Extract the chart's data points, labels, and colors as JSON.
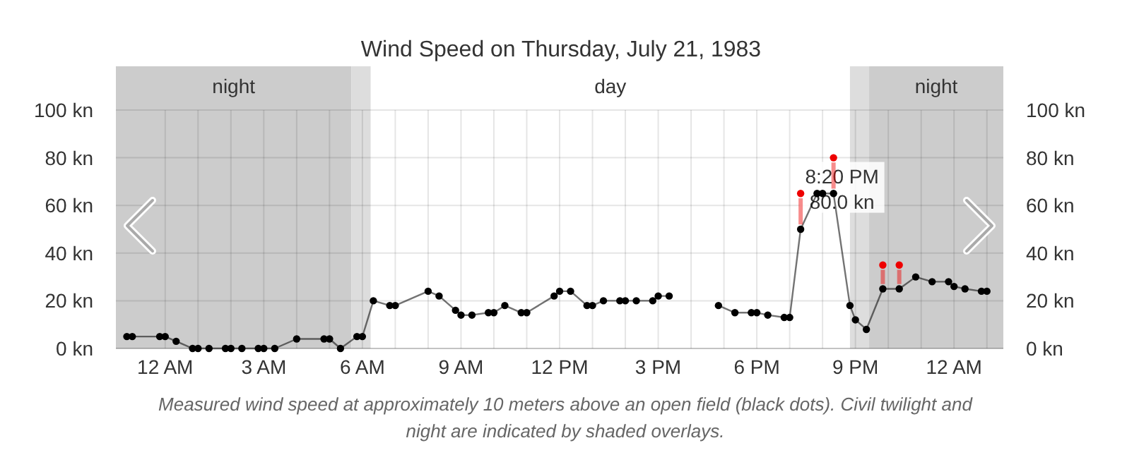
{
  "chart_data": {
    "type": "line",
    "title": "Wind Speed on Thursday, July 21, 1983",
    "xlim": [
      "1983-07-20T22:30",
      "1983-07-22T01:30"
    ],
    "xticks": [
      {
        "value": "1983-07-21T00:00",
        "label": "12 AM"
      },
      {
        "value": "1983-07-21T01:00",
        "label": null
      },
      {
        "value": "1983-07-21T02:00",
        "label": null
      },
      {
        "value": "1983-07-21T03:00",
        "label": "3 AM"
      },
      {
        "value": "1983-07-21T04:00",
        "label": null
      },
      {
        "value": "1983-07-21T05:00",
        "label": null
      },
      {
        "value": "1983-07-21T06:00",
        "label": "6 AM"
      },
      {
        "value": "1983-07-21T07:00",
        "label": null
      },
      {
        "value": "1983-07-21T08:00",
        "label": null
      },
      {
        "value": "1983-07-21T09:00",
        "label": "9 AM"
      },
      {
        "value": "1983-07-21T10:00",
        "label": null
      },
      {
        "value": "1983-07-21T11:00",
        "label": null
      },
      {
        "value": "1983-07-21T12:00",
        "label": "12 PM"
      },
      {
        "value": "1983-07-21T13:00",
        "label": null
      },
      {
        "value": "1983-07-21T14:00",
        "label": null
      },
      {
        "value": "1983-07-21T15:00",
        "label": "3 PM"
      },
      {
        "value": "1983-07-21T16:00",
        "label": null
      },
      {
        "value": "1983-07-21T17:00",
        "label": null
      },
      {
        "value": "1983-07-21T18:00",
        "label": "6 PM"
      },
      {
        "value": "1983-07-21T19:00",
        "label": null
      },
      {
        "value": "1983-07-21T20:00",
        "label": null
      },
      {
        "value": "1983-07-21T21:00",
        "label": "9 PM"
      },
      {
        "value": "1983-07-21T22:00",
        "label": null
      },
      {
        "value": "1983-07-21T23:00",
        "label": null
      },
      {
        "value": "1983-07-22T00:00",
        "label": "12 AM"
      },
      {
        "value": "1983-07-22T01:00",
        "label": null
      }
    ],
    "ylim": [
      0,
      100
    ],
    "yticks": [
      {
        "value": 0,
        "label": "0 kn"
      },
      {
        "value": 20,
        "label": "20 kn"
      },
      {
        "value": 40,
        "label": "40 kn"
      },
      {
        "value": 60,
        "label": "60 kn"
      },
      {
        "value": 80,
        "label": "80 kn"
      },
      {
        "value": 100,
        "label": "100 kn"
      }
    ],
    "y2lim": [
      0,
      100
    ],
    "y2ticks": [
      {
        "value": 0,
        "label": "0 kn"
      },
      {
        "value": 20,
        "label": "20 kn"
      },
      {
        "value": 40,
        "label": "40 kn"
      },
      {
        "value": 60,
        "label": "60 kn"
      },
      {
        "value": 80,
        "label": "80 kn"
      },
      {
        "value": 100,
        "label": "100 kn"
      }
    ],
    "grid": true,
    "marker": "circle",
    "line_style": "solid",
    "bands": [
      {
        "axis": "x",
        "from": "1983-07-20T22:30",
        "to": "1983-07-21T05:40",
        "label": "night",
        "color": "#cccccc"
      },
      {
        "axis": "x",
        "from": "1983-07-21T05:40",
        "to": "1983-07-21T06:15",
        "label": null,
        "color": "#dddddd"
      },
      {
        "axis": "x",
        "from": "1983-07-21T20:50",
        "to": "1983-07-21T21:25",
        "label": null,
        "color": "#dddddd"
      },
      {
        "axis": "x",
        "from": "1983-07-21T21:25",
        "to": "1983-07-22T01:30",
        "label": "night",
        "color": "#cccccc"
      }
    ],
    "series": [
      {
        "color": "#000000",
        "x": [
          "1983-07-20T22:50",
          "1983-07-20T23:00",
          "1983-07-20T23:50",
          "1983-07-21T00:00",
          "1983-07-21T00:20",
          "1983-07-21T00:50",
          "1983-07-21T01:00",
          "1983-07-21T01:20",
          "1983-07-21T01:50",
          "1983-07-21T02:00",
          "1983-07-21T02:20",
          "1983-07-21T02:50",
          "1983-07-21T03:00",
          "1983-07-21T03:20",
          "1983-07-21T04:00",
          "1983-07-21T04:50",
          "1983-07-21T05:00",
          "1983-07-21T05:20",
          "1983-07-21T05:50",
          "1983-07-21T06:00",
          "1983-07-21T06:20",
          "1983-07-21T06:50",
          "1983-07-21T07:00",
          "1983-07-21T08:00",
          "1983-07-21T08:20",
          "1983-07-21T08:50",
          "1983-07-21T09:00",
          "1983-07-21T09:20",
          "1983-07-21T09:50",
          "1983-07-21T10:00",
          "1983-07-21T10:20",
          "1983-07-21T10:50",
          "1983-07-21T11:00",
          "1983-07-21T11:50",
          "1983-07-21T12:00",
          "1983-07-21T12:20",
          "1983-07-21T12:50",
          "1983-07-21T13:00",
          "1983-07-21T13:20",
          "1983-07-21T13:50",
          "1983-07-21T14:00",
          "1983-07-21T14:20",
          "1983-07-21T14:50",
          "1983-07-21T15:00",
          "1983-07-21T15:20",
          "1983-07-21T16:00",
          "1983-07-21T16:50",
          "1983-07-21T17:20",
          "1983-07-21T17:50",
          "1983-07-21T18:00",
          "1983-07-21T18:20",
          "1983-07-21T18:50",
          "1983-07-21T19:00",
          "1983-07-21T19:20",
          "1983-07-21T19:50",
          "1983-07-21T20:00",
          "1983-07-21T20:20",
          "1983-07-21T20:50",
          "1983-07-21T21:00",
          "1983-07-21T21:20",
          "1983-07-21T21:50",
          "1983-07-21T22:20",
          "1983-07-21T22:50",
          "1983-07-21T23:20",
          "1983-07-21T23:50",
          "1983-07-22T00:00",
          "1983-07-22T00:20",
          "1983-07-22T00:50",
          "1983-07-22T01:00"
        ],
        "values": [
          5,
          5,
          5,
          5,
          3,
          0,
          0,
          0,
          0,
          0,
          0,
          0,
          0,
          0,
          4,
          4,
          4,
          0,
          5,
          5,
          20,
          18,
          18,
          24,
          22,
          16,
          14,
          14,
          15,
          15,
          18,
          15,
          15,
          22,
          24,
          24,
          18,
          18,
          20,
          20,
          20,
          20,
          20,
          22,
          22,
          null,
          18,
          15,
          15,
          15,
          14,
          13,
          13,
          50,
          65,
          65,
          65,
          18,
          12,
          8,
          25,
          25,
          30,
          28,
          28,
          26,
          25,
          24,
          24
        ]
      },
      {
        "type": "scatter",
        "color": "#ee0000",
        "x": [
          "1983-07-21T19:20",
          "1983-07-21T20:20",
          "1983-07-21T21:50",
          "1983-07-21T22:20"
        ],
        "values": [
          65,
          80,
          35,
          35
        ],
        "errors": [
          [
            52,
            63
          ],
          [
            67,
            78
          ],
          [
            27,
            33
          ],
          [
            27,
            33
          ]
        ]
      }
    ],
    "annotations": [
      "day",
      {
        "text": "8:20 PM\n80.0 kn",
        "x": "1983-07-21T20:20",
        "y": 80
      },
      "Measured wind speed at approximately 10 meters above an open field (black dots). Civil twilight and\nnight are indicated by shaded overlays."
    ]
  }
}
